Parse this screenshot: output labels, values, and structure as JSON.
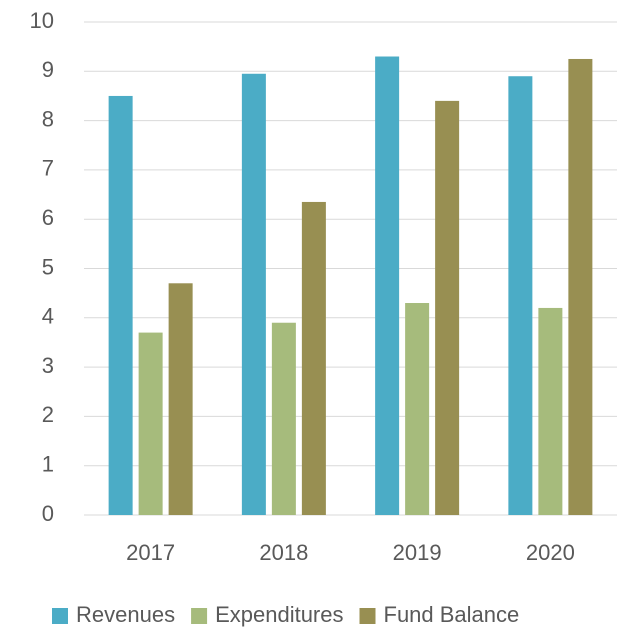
{
  "chart_data": {
    "type": "bar",
    "categories": [
      "2017",
      "2018",
      "2019",
      "2020"
    ],
    "series": [
      {
        "name": "Revenues",
        "color": "#4bacc6",
        "values": [
          8.5,
          8.95,
          9.3,
          8.9
        ]
      },
      {
        "name": "Expenditures",
        "color": "#a6bb7c",
        "values": [
          3.7,
          3.9,
          4.3,
          4.2
        ]
      },
      {
        "name": "Fund Balance",
        "color": "#988f52",
        "values": [
          4.7,
          6.35,
          8.4,
          9.25
        ]
      }
    ],
    "ylim": [
      0,
      10
    ],
    "yticks": [
      0,
      1,
      2,
      3,
      4,
      5,
      6,
      7,
      8,
      9,
      10
    ],
    "grid": true,
    "legend": "bottom"
  }
}
